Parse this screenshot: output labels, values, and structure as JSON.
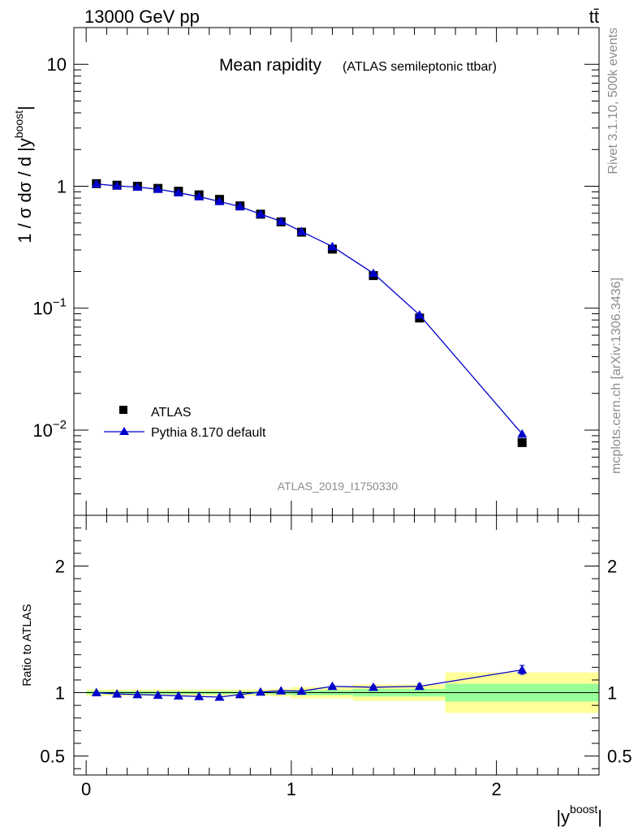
{
  "header": {
    "left": "13000 GeV pp",
    "right": "tt̄"
  },
  "side_text": {
    "top": "Rivet 3.1.10,  500k events",
    "bottom": "mcplots.cern.ch [arXiv:1306.3436]"
  },
  "colors": {
    "mc": "#0000cc",
    "data": "#000000",
    "band_inner": "#99ff99",
    "band_outer": "#ffff99"
  },
  "chart_data": [
    {
      "type": "scatter",
      "panel": "main",
      "title": "Mean rapidity",
      "subtitle": "(ATLAS semileptonic ttbar)",
      "ylabel": "1 / σ dσ / d |y",
      "ylabel_sup": "boost",
      "ylabel_tail": "|",
      "watermark": "ATLAS_2019_I1750330",
      "yscale": "log",
      "xlim": [
        -0.06,
        2.5
      ],
      "ylim": [
        0.002,
        20
      ],
      "y_ticks": [
        {
          "v": 10,
          "base": "10",
          "exp": ""
        },
        {
          "v": 1,
          "base": "1",
          "exp": ""
        },
        {
          "v": 0.1,
          "base": "10",
          "exp": "−1"
        },
        {
          "v": 0.01,
          "base": "10",
          "exp": "−2"
        }
      ],
      "legend": {
        "placement": "bottom-left",
        "entries": [
          "ATLAS",
          "Pythia 8.170 default"
        ]
      },
      "x": [
        0.05,
        0.15,
        0.25,
        0.35,
        0.45,
        0.55,
        0.65,
        0.75,
        0.85,
        0.95,
        1.05,
        1.2,
        1.4,
        1.625,
        2.125
      ],
      "series": [
        {
          "name": "ATLAS",
          "marker": "square",
          "values": [
            1.05,
            1.02,
            1.0,
            0.96,
            0.91,
            0.85,
            0.78,
            0.69,
            0.59,
            0.51,
            0.42,
            0.305,
            0.185,
            0.083,
            0.0079
          ]
        },
        {
          "name": "Pythia 8.170 default",
          "marker": "triangle",
          "values": [
            1.045,
            1.005,
            0.985,
            0.945,
            0.885,
            0.82,
            0.75,
            0.68,
            0.59,
            0.515,
            0.425,
            0.32,
            0.193,
            0.088,
            0.0093
          ]
        }
      ]
    },
    {
      "type": "scatter",
      "panel": "ratio",
      "ylabel": "Ratio to ATLAS",
      "xlabel": "|y",
      "xlabel_sup": "boost",
      "xlabel_tail": "|",
      "xlim": [
        -0.06,
        2.5
      ],
      "ylim": [
        0.35,
        2.4
      ],
      "x_ticks": [
        "0",
        "1",
        "2"
      ],
      "y_ticks": [
        "0.5",
        "1",
        "2"
      ],
      "bins": [
        {
          "lo": 0.0,
          "hi": 0.1,
          "inner": 0.012,
          "outer": 0.025
        },
        {
          "lo": 0.1,
          "hi": 0.2,
          "inner": 0.012,
          "outer": 0.025
        },
        {
          "lo": 0.2,
          "hi": 0.3,
          "inner": 0.012,
          "outer": 0.025
        },
        {
          "lo": 0.3,
          "hi": 0.4,
          "inner": 0.012,
          "outer": 0.025
        },
        {
          "lo": 0.4,
          "hi": 0.5,
          "inner": 0.012,
          "outer": 0.025
        },
        {
          "lo": 0.5,
          "hi": 0.6,
          "inner": 0.012,
          "outer": 0.025
        },
        {
          "lo": 0.6,
          "hi": 0.7,
          "inner": 0.012,
          "outer": 0.025
        },
        {
          "lo": 0.7,
          "hi": 0.8,
          "inner": 0.012,
          "outer": 0.025
        },
        {
          "lo": 0.8,
          "hi": 0.9,
          "inner": 0.012,
          "outer": 0.025
        },
        {
          "lo": 0.9,
          "hi": 1.0,
          "inner": 0.015,
          "outer": 0.03
        },
        {
          "lo": 1.0,
          "hi": 1.1,
          "inner": 0.02,
          "outer": 0.045
        },
        {
          "lo": 1.1,
          "hi": 1.3,
          "inner": 0.02,
          "outer": 0.045
        },
        {
          "lo": 1.3,
          "hi": 1.5,
          "inner": 0.03,
          "outer": 0.065
        },
        {
          "lo": 1.5,
          "hi": 1.75,
          "inner": 0.03,
          "outer": 0.065
        },
        {
          "lo": 1.75,
          "hi": 2.5,
          "inner": 0.07,
          "outer": 0.16
        }
      ],
      "x": [
        0.05,
        0.15,
        0.25,
        0.35,
        0.45,
        0.55,
        0.65,
        0.75,
        0.85,
        0.95,
        1.05,
        1.2,
        1.4,
        1.625,
        2.125
      ],
      "values": [
        1.0,
        0.99,
        0.985,
        0.98,
        0.975,
        0.97,
        0.965,
        0.985,
        1.005,
        1.015,
        1.012,
        1.05,
        1.043,
        1.05,
        1.18
      ],
      "errors": [
        0.004,
        0.004,
        0.004,
        0.004,
        0.004,
        0.004,
        0.005,
        0.005,
        0.005,
        0.006,
        0.007,
        0.01,
        0.012,
        0.018,
        0.035
      ]
    }
  ]
}
